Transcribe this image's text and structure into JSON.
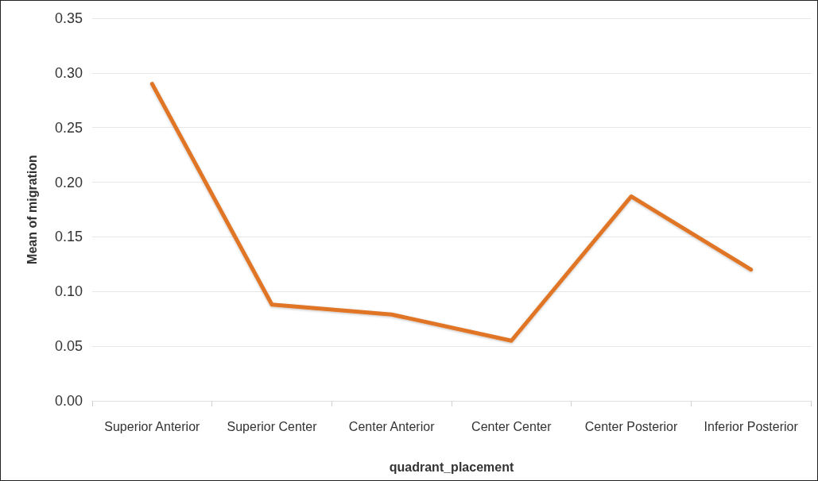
{
  "chart_data": {
    "type": "line",
    "xlabel": "quadrant_placement",
    "ylabel": "Mean of migration",
    "categories": [
      "Superior Anterior",
      "Superior Center",
      "Center Anterior",
      "Center Center",
      "Center Posterior",
      "Inferior Posterior"
    ],
    "series": [
      {
        "color": "#e07525",
        "values": [
          0.29,
          0.088,
          0.079,
          0.055,
          0.187,
          0.12
        ]
      }
    ],
    "ylim": [
      0,
      0.35
    ],
    "yticks": [
      {
        "value": 0,
        "label": "0.00"
      },
      {
        "value": 0.05,
        "label": "0.05"
      },
      {
        "value": 0.1,
        "label": "0.10"
      },
      {
        "value": 0.15,
        "label": "0.15"
      },
      {
        "value": 0.2,
        "label": "0.20"
      },
      {
        "value": 0.25,
        "label": "0.25"
      },
      {
        "value": 0.3,
        "label": "0.30"
      },
      {
        "value": 0.35,
        "label": "0.35"
      }
    ],
    "grid": "y",
    "marker": "none",
    "line_style": "solid"
  }
}
